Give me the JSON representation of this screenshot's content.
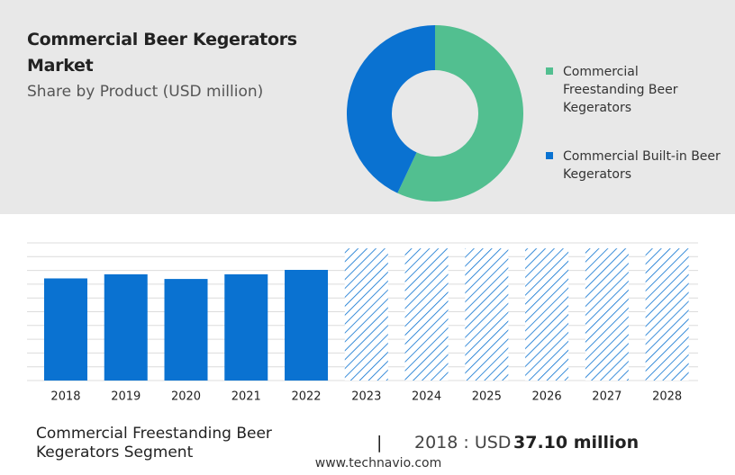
{
  "header": {
    "title": "Commercial Beer Kegerators Market",
    "subtitle": "Share by Product (USD million)"
  },
  "chart_data": [
    {
      "type": "donut",
      "categories": [
        "Commercial Freestanding Beer Kegerators",
        "Commercial Built-in Beer Kegerators"
      ],
      "values": [
        57,
        43
      ],
      "colors": [
        "#52bf90",
        "#0a72d1"
      ]
    },
    {
      "type": "bar",
      "categories": [
        "2018",
        "2019",
        "2020",
        "2021",
        "2022",
        "2023",
        "2024",
        "2025",
        "2026",
        "2027",
        "2028"
      ],
      "values": [
        37.1,
        38.6,
        36.9,
        38.6,
        40.2,
        48,
        48,
        48,
        48,
        48,
        48
      ],
      "styles": [
        "solid",
        "solid",
        "solid",
        "solid",
        "solid",
        "hatched",
        "hatched",
        "hatched",
        "hatched",
        "hatched",
        "hatched"
      ],
      "color": "#0a72d1",
      "ylim": [
        0,
        50
      ],
      "yticks": [
        0,
        5,
        10,
        15,
        20,
        25,
        30,
        35,
        40,
        45,
        50
      ],
      "grid": true
    }
  ],
  "footer": {
    "segment": "Commercial Freestanding Beer Kegerators Segment",
    "separator": "|",
    "year_label": "2018 : USD",
    "value_label": "37.10 million",
    "website": "www.technavio.com"
  }
}
